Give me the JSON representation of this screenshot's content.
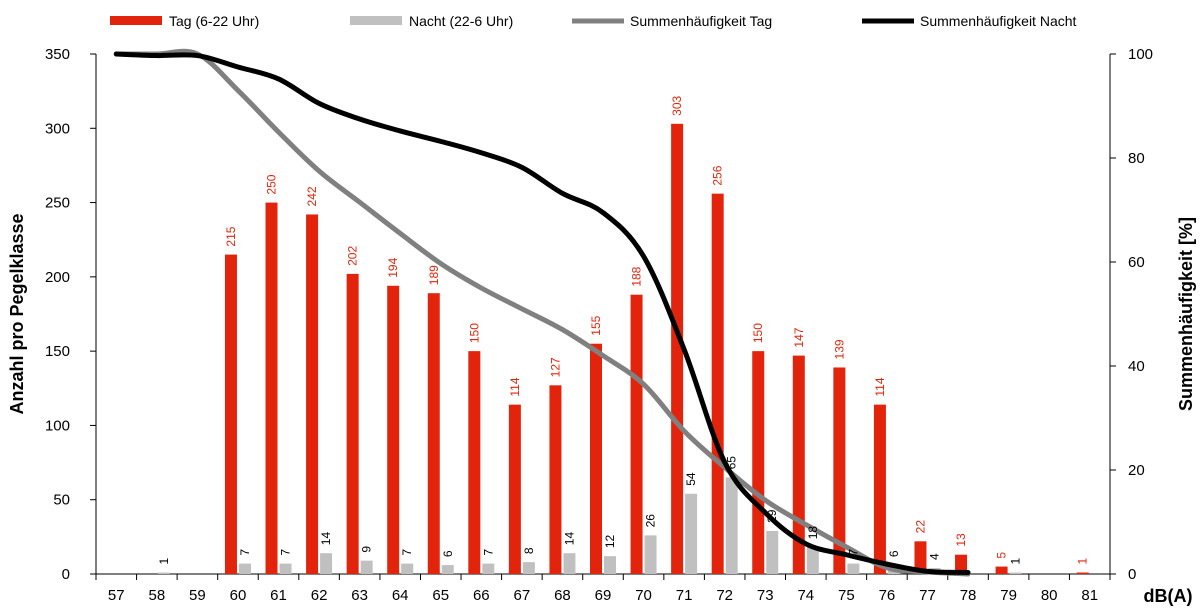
{
  "chart_data": {
    "type": "bar",
    "categories": [
      "57",
      "58",
      "59",
      "60",
      "61",
      "62",
      "63",
      "64",
      "65",
      "66",
      "67",
      "68",
      "69",
      "70",
      "71",
      "72",
      "73",
      "74",
      "75",
      "76",
      "77",
      "78",
      "79",
      "80",
      "81"
    ],
    "series": [
      {
        "name": "Tag (6-22 Uhr)",
        "type": "bar",
        "axis": "left",
        "color": "#e3240c",
        "values": [
          0,
          0,
          0,
          215,
          250,
          242,
          202,
          194,
          189,
          150,
          114,
          127,
          155,
          188,
          303,
          256,
          150,
          147,
          139,
          114,
          22,
          13,
          5,
          0,
          1
        ],
        "labels": [
          null,
          null,
          null,
          "215",
          "250",
          "242",
          "202",
          "194",
          "189",
          "150",
          "114",
          "127",
          "155",
          "188",
          "303",
          "256",
          "150",
          "147",
          "139",
          "114",
          "22",
          "13",
          "5",
          null,
          "1"
        ]
      },
      {
        "name": "Nacht (22-6 Uhr)",
        "type": "bar",
        "axis": "left",
        "color": "#c0c0c0",
        "values": [
          0,
          1,
          0,
          7,
          7,
          14,
          9,
          7,
          6,
          7,
          8,
          14,
          12,
          26,
          54,
          65,
          29,
          18,
          7,
          6,
          4,
          0,
          1,
          0,
          0
        ],
        "labels": [
          null,
          "1",
          null,
          "7",
          "7",
          "14",
          "9",
          "7",
          "6",
          "7",
          "8",
          "14",
          "12",
          "26",
          "54",
          "65",
          "29",
          "18",
          "7",
          "6",
          "4",
          null,
          "1",
          null,
          null
        ]
      },
      {
        "name": "Summenhäufigkeit Tag",
        "type": "line",
        "axis": "right",
        "color": "#808080",
        "values": [
          100,
          100,
          100,
          93,
          85,
          77.5,
          71.5,
          65.5,
          59.7,
          55,
          51,
          47,
          42,
          36.5,
          27.5,
          20.5,
          14.2,
          9.5,
          5.2,
          1.2,
          0.4,
          0,
          null,
          null,
          null
        ]
      },
      {
        "name": "Summenhäufigkeit Nacht",
        "type": "line",
        "axis": "right",
        "color": "#000000",
        "values": [
          100,
          99.7,
          99.7,
          97.5,
          95.2,
          90.5,
          87.5,
          85.2,
          83.2,
          81,
          78.2,
          73.2,
          69.5,
          61.1,
          43.2,
          21.5,
          11.8,
          5.8,
          3.7,
          1.9,
          0.5,
          0.3,
          null,
          null,
          null
        ]
      }
    ],
    "xlabel": "dB(A)",
    "ylabel": "Anzahl pro Pegelklasse",
    "y2label": "Summenhäufigkeit [%]",
    "ylim": [
      0,
      350
    ],
    "yticks": [
      0,
      50,
      100,
      150,
      200,
      250,
      300,
      350
    ],
    "y2lim": [
      0,
      100
    ],
    "y2ticks": [
      0,
      20,
      40,
      60,
      80,
      100
    ],
    "grid": false,
    "legend_position": "top"
  }
}
